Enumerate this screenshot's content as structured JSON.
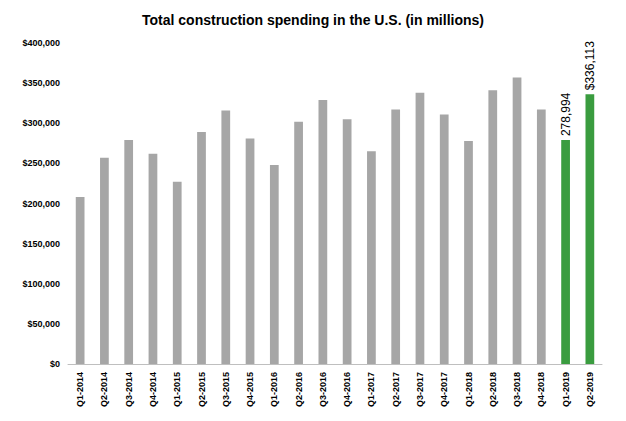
{
  "chart_data": {
    "type": "bar",
    "title": "Total construction spending in the U.S. (in millions)",
    "categories": [
      "Q1-2014",
      "Q2-2014",
      "Q3-2014",
      "Q4-2014",
      "Q1-2015",
      "Q2-2015",
      "Q3-2015",
      "Q4-2015",
      "Q1-2016",
      "Q2-2016",
      "Q3-2016",
      "Q4-2016",
      "Q1-2017",
      "Q2-2017",
      "Q3-2017",
      "Q4-2017",
      "Q1-2018",
      "Q2-2018",
      "Q3-2018",
      "Q4-2018",
      "Q1-2019",
      "Q2-2019"
    ],
    "values": [
      208000,
      257000,
      279000,
      262000,
      227000,
      289000,
      316000,
      281000,
      248000,
      302000,
      329000,
      305000,
      265000,
      317000,
      338000,
      311000,
      278000,
      341000,
      357000,
      317000,
      278994,
      336113
    ],
    "colors": [
      "#a6a6a6",
      "#a6a6a6",
      "#a6a6a6",
      "#a6a6a6",
      "#a6a6a6",
      "#a6a6a6",
      "#a6a6a6",
      "#a6a6a6",
      "#a6a6a6",
      "#a6a6a6",
      "#a6a6a6",
      "#a6a6a6",
      "#a6a6a6",
      "#a6a6a6",
      "#a6a6a6",
      "#a6a6a6",
      "#a6a6a6",
      "#a6a6a6",
      "#a6a6a6",
      "#a6a6a6",
      "#3a9c3f",
      "#3a9c3f"
    ],
    "data_labels": true,
    "value_labels": [
      null,
      null,
      null,
      null,
      null,
      null,
      null,
      null,
      null,
      null,
      null,
      null,
      null,
      null,
      null,
      null,
      null,
      null,
      null,
      null,
      "278,994",
      "$336,113"
    ],
    "ylim": [
      0,
      400000
    ],
    "yticks": [
      {
        "value": 0,
        "label": "$0"
      },
      {
        "value": 50000,
        "label": "$50,000"
      },
      {
        "value": 100000,
        "label": "$100,000"
      },
      {
        "value": 150000,
        "label": "$150,000"
      },
      {
        "value": 200000,
        "label": "$200,000"
      },
      {
        "value": 250000,
        "label": "$250,000"
      },
      {
        "value": 300000,
        "label": "$300,000"
      },
      {
        "value": 350000,
        "label": "$350,000"
      },
      {
        "value": 400000,
        "label": "$400,000"
      }
    ],
    "grid": false
  }
}
